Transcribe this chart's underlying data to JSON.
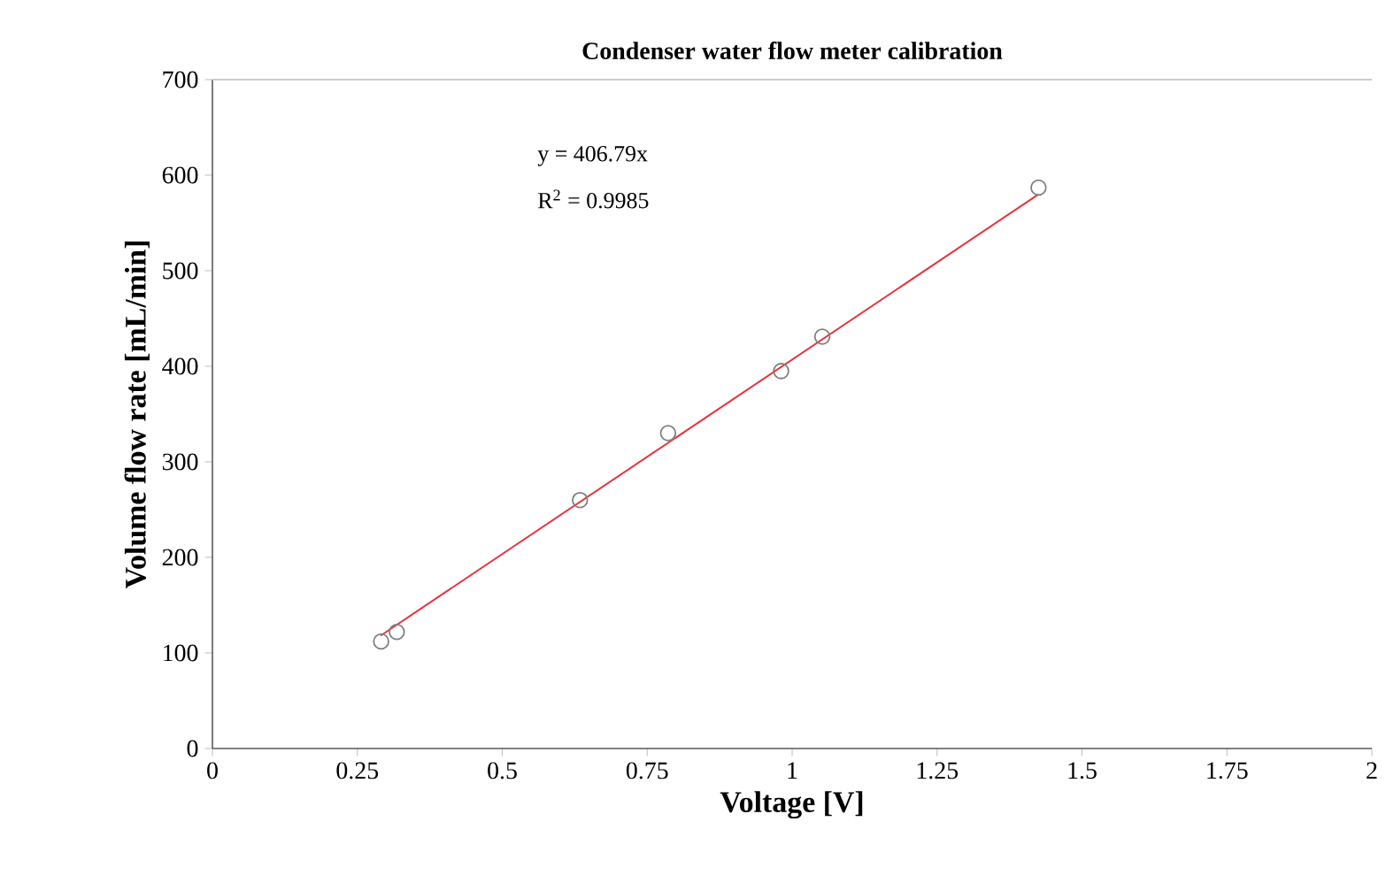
{
  "chart_data": {
    "type": "scatter",
    "title": "Condenser water flow meter calibration",
    "xlabel": "Voltage [V]",
    "ylabel": "Volume flow rate [mL/min]",
    "annotations": [
      "y = 406.79x",
      "R$^{2}$ = 0.9985"
    ],
    "series": [
      {
        "color": "#808080",
        "marker": "circle",
        "x": [
          0.291,
          0.318,
          0.634,
          0.786,
          0.981,
          1.052,
          1.425
        ],
        "values": [
          112,
          122,
          260,
          330,
          395,
          431,
          587
        ]
      },
      {
        "type": "line",
        "color": "#e8313a",
        "marker": "none",
        "x": [
          0.29,
          1.425
        ],
        "values": [
          118,
          580
        ]
      }
    ],
    "xlim": [
      0,
      2
    ],
    "xticks": [
      0,
      0.25,
      0.5,
      0.75,
      1,
      1.25,
      1.5,
      1.75,
      2
    ],
    "ylim": [
      0,
      700
    ],
    "yticks": [
      0,
      100,
      200,
      300,
      400,
      500,
      600,
      700
    ],
    "grid": false
  }
}
